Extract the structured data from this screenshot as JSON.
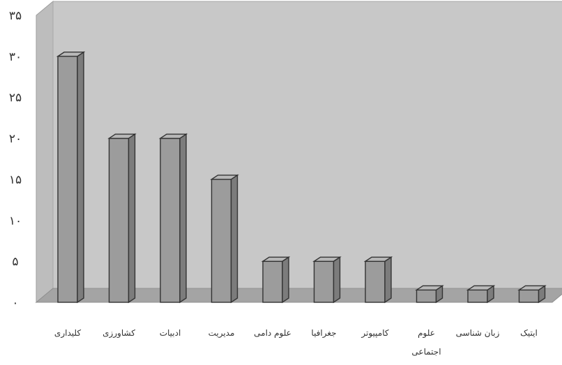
{
  "chart_data": {
    "type": "bar",
    "style": "3d-column",
    "categories": [
      "کلیداری",
      "کشاورزی",
      "ادبیات",
      "مدیریت",
      "علوم دامی",
      "جغرافیا",
      "کامپیوتر",
      "علوم اجتماعی",
      "زبان شناسی",
      "ایتیک"
    ],
    "values": [
      30,
      20,
      20,
      15,
      5,
      5,
      5,
      1.5,
      1.5,
      1.5
    ],
    "ylim": [
      0,
      35
    ],
    "yticks": [
      "۰",
      "۵",
      "۱۰",
      "۱۵",
      "۲۰",
      "۲۵",
      "۳۰",
      "۳۵"
    ],
    "grid": false,
    "legend": "none",
    "title": "",
    "xlabel": "",
    "ylabel": ""
  }
}
